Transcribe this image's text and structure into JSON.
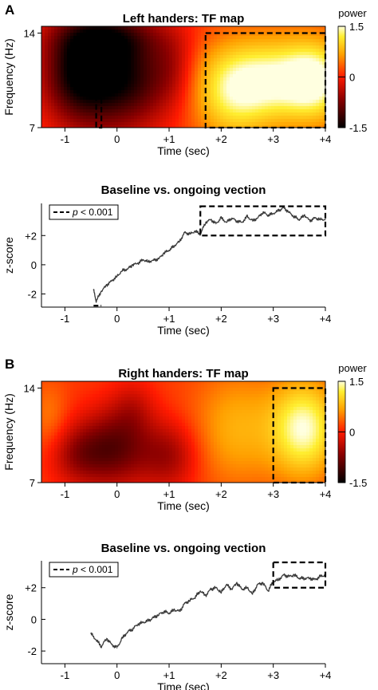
{
  "chart_data": [
    {
      "panel": "A",
      "type": "heatmap",
      "title": "Left handers: TF map",
      "xlabel": "Time (sec)",
      "ylabel": "Frequency (Hz)",
      "xlim": [
        -1.45,
        4
      ],
      "ylim": [
        7,
        14.5
      ],
      "x_ticks": [
        "-1",
        "0",
        "+1",
        "+2",
        "+3",
        "+4"
      ],
      "y_ticks": [
        "7",
        "14"
      ],
      "colorbar": {
        "label": "power",
        "ticks": [
          "1.5",
          "0",
          "-1.5"
        ],
        "range": [
          -1.5,
          1.5
        ]
      },
      "highlight_boxes": [
        {
          "x": [
            -0.4,
            -0.3
          ],
          "y": [
            7,
            14
          ]
        },
        {
          "x": [
            1.7,
            4.0
          ],
          "y": [
            7,
            14
          ]
        }
      ],
      "blobs": [
        {
          "t": -0.3,
          "f": 11.0,
          "st": 0.55,
          "sf": 3.0,
          "v": -1.4
        },
        {
          "t": -0.9,
          "f": 11.0,
          "st": 0.45,
          "sf": 2.5,
          "v": -0.9
        },
        {
          "t": 0.5,
          "f": 10.5,
          "st": 0.5,
          "sf": 2.5,
          "v": -0.8
        },
        {
          "t": -0.2,
          "f": 13.8,
          "st": 0.8,
          "sf": 1.2,
          "v": -0.7
        },
        {
          "t": 3.0,
          "f": 10.5,
          "st": 0.9,
          "sf": 2.2,
          "v": 1.3
        },
        {
          "t": 3.8,
          "f": 10.5,
          "st": 0.4,
          "sf": 2.0,
          "v": 0.8
        },
        {
          "t": 2.2,
          "f": 9.0,
          "st": 0.5,
          "sf": 2.5,
          "v": 0.6
        },
        {
          "t": 1.1,
          "f": 11.5,
          "st": 0.3,
          "sf": 2.0,
          "v": -0.4
        }
      ]
    },
    {
      "panel": "A",
      "type": "line",
      "title": "Baseline vs. ongoing vection",
      "xlabel": "Time (sec)",
      "ylabel": "z-score",
      "xlim": [
        -1.45,
        4
      ],
      "ylim": [
        -2.9,
        4.2
      ],
      "x_ticks": [
        "-1",
        "0",
        "+1",
        "+2",
        "+3",
        "+4"
      ],
      "y_ticks": [
        {
          "v": -2,
          "label": "-2"
        },
        {
          "v": 0,
          "label": "0"
        },
        {
          "v": 2,
          "label": "+2"
        }
      ],
      "legend": {
        "placement": "top-left",
        "entry_prefix": "p",
        "entry_suffix": " < 0.001",
        "style": "dashed"
      },
      "highlight_boxes": [
        {
          "x": [
            -0.45,
            -0.3
          ],
          "y": [
            -2.8,
            -2.8
          ],
          "type": "segment"
        },
        {
          "x": [
            1.6,
            4.0
          ],
          "y": [
            2.0,
            4.0
          ]
        }
      ],
      "series": [
        {
          "x": [
            -0.45,
            -0.4,
            -0.3,
            -0.2,
            -0.1,
            0.0,
            0.1,
            0.2,
            0.3,
            0.4,
            0.5,
            0.6,
            0.7,
            0.8,
            0.9,
            1.0,
            1.1,
            1.2,
            1.3,
            1.4,
            1.5,
            1.6,
            1.7,
            1.8,
            1.9,
            2.0,
            2.1,
            2.2,
            2.3,
            2.4,
            2.5,
            2.6,
            2.7,
            2.8,
            2.9,
            3.0,
            3.1,
            3.2,
            3.3,
            3.4,
            3.5,
            3.6,
            3.7,
            3.8,
            3.9,
            4.0
          ],
          "y": [
            -1.7,
            -2.5,
            -1.8,
            -1.4,
            -1.1,
            -0.8,
            -0.4,
            -0.3,
            0.0,
            0.1,
            0.35,
            0.2,
            0.3,
            0.4,
            0.8,
            1.0,
            1.3,
            1.6,
            2.2,
            2.1,
            2.3,
            2.1,
            2.9,
            3.1,
            2.8,
            3.2,
            2.9,
            3.2,
            3.0,
            2.9,
            3.3,
            3.0,
            3.2,
            3.6,
            3.4,
            3.5,
            3.7,
            3.9,
            3.6,
            3.3,
            3.1,
            3.4,
            3.0,
            3.2,
            3.1,
            3.1
          ]
        }
      ]
    },
    {
      "panel": "B",
      "type": "heatmap",
      "title": "Right handers: TF map",
      "xlabel": "Time (sec)",
      "ylabel": "Frequency (Hz)",
      "xlim": [
        -1.45,
        4
      ],
      "ylim": [
        7,
        14.5
      ],
      "x_ticks": [
        "-1",
        "0",
        "+1",
        "+2",
        "+3",
        "+4"
      ],
      "y_ticks": [
        "7",
        "14"
      ],
      "colorbar": {
        "label": "power",
        "ticks": [
          "1.5",
          "0",
          "-1.5"
        ],
        "range": [
          -1.5,
          1.5
        ]
      },
      "highlight_boxes": [
        {
          "x": [
            3.0,
            4.0
          ],
          "y": [
            7,
            14
          ]
        }
      ],
      "blobs": [
        {
          "t": -0.1,
          "f": 9.5,
          "st": 0.5,
          "sf": 2.0,
          "v": -1.1
        },
        {
          "t": 1.0,
          "f": 9.0,
          "st": 0.4,
          "sf": 1.8,
          "v": -0.7
        },
        {
          "t": -0.8,
          "f": 9.0,
          "st": 0.35,
          "sf": 1.5,
          "v": -0.5
        },
        {
          "t": 0.3,
          "f": 12.5,
          "st": 0.3,
          "sf": 1.5,
          "v": -0.4
        },
        {
          "t": 3.6,
          "f": 11.0,
          "st": 0.45,
          "sf": 2.5,
          "v": 1.3
        },
        {
          "t": 2.3,
          "f": 11.0,
          "st": 0.6,
          "sf": 3.0,
          "v": 0.6
        },
        {
          "t": -1.3,
          "f": 12.0,
          "st": 0.25,
          "sf": 1.8,
          "v": 0.3
        }
      ]
    },
    {
      "panel": "B",
      "type": "line",
      "title": "Baseline vs. ongoing vection",
      "xlabel": "Time (sec)",
      "ylabel": "z-score",
      "xlim": [
        -1.45,
        4
      ],
      "ylim": [
        -2.8,
        3.7
      ],
      "x_ticks": [
        "-1",
        "0",
        "+1",
        "+2",
        "+3",
        "+4"
      ],
      "y_ticks": [
        {
          "v": -2,
          "label": "-2"
        },
        {
          "v": 0,
          "label": "0"
        },
        {
          "v": 2,
          "label": "+2"
        }
      ],
      "legend": {
        "placement": "top-left",
        "entry_prefix": "p",
        "entry_suffix": " < 0.001",
        "style": "dashed"
      },
      "highlight_boxes": [
        {
          "x": [
            3.0,
            4.0
          ],
          "y": [
            2.0,
            3.6
          ]
        }
      ],
      "series": [
        {
          "x": [
            -0.5,
            -0.4,
            -0.3,
            -0.2,
            -0.1,
            0.0,
            0.1,
            0.2,
            0.3,
            0.4,
            0.5,
            0.6,
            0.7,
            0.8,
            0.9,
            1.0,
            1.1,
            1.2,
            1.3,
            1.4,
            1.5,
            1.6,
            1.7,
            1.8,
            1.9,
            2.0,
            2.1,
            2.2,
            2.3,
            2.4,
            2.5,
            2.6,
            2.7,
            2.8,
            2.9,
            3.0,
            3.1,
            3.2,
            3.3,
            3.4,
            3.5,
            3.6,
            3.7,
            3.8,
            3.9,
            4.0
          ],
          "y": [
            -0.9,
            -1.3,
            -1.7,
            -1.2,
            -1.6,
            -1.8,
            -1.2,
            -0.8,
            -0.6,
            -0.3,
            -0.2,
            -0.1,
            0.1,
            0.3,
            0.5,
            0.4,
            0.6,
            0.5,
            1.0,
            1.2,
            1.4,
            1.8,
            1.5,
            1.9,
            2.0,
            1.7,
            2.2,
            1.9,
            2.3,
            1.9,
            2.0,
            1.6,
            2.2,
            2.3,
            1.8,
            2.4,
            2.5,
            2.8,
            2.7,
            2.8,
            2.6,
            2.6,
            2.6,
            2.5,
            2.7,
            2.8
          ]
        }
      ]
    }
  ]
}
